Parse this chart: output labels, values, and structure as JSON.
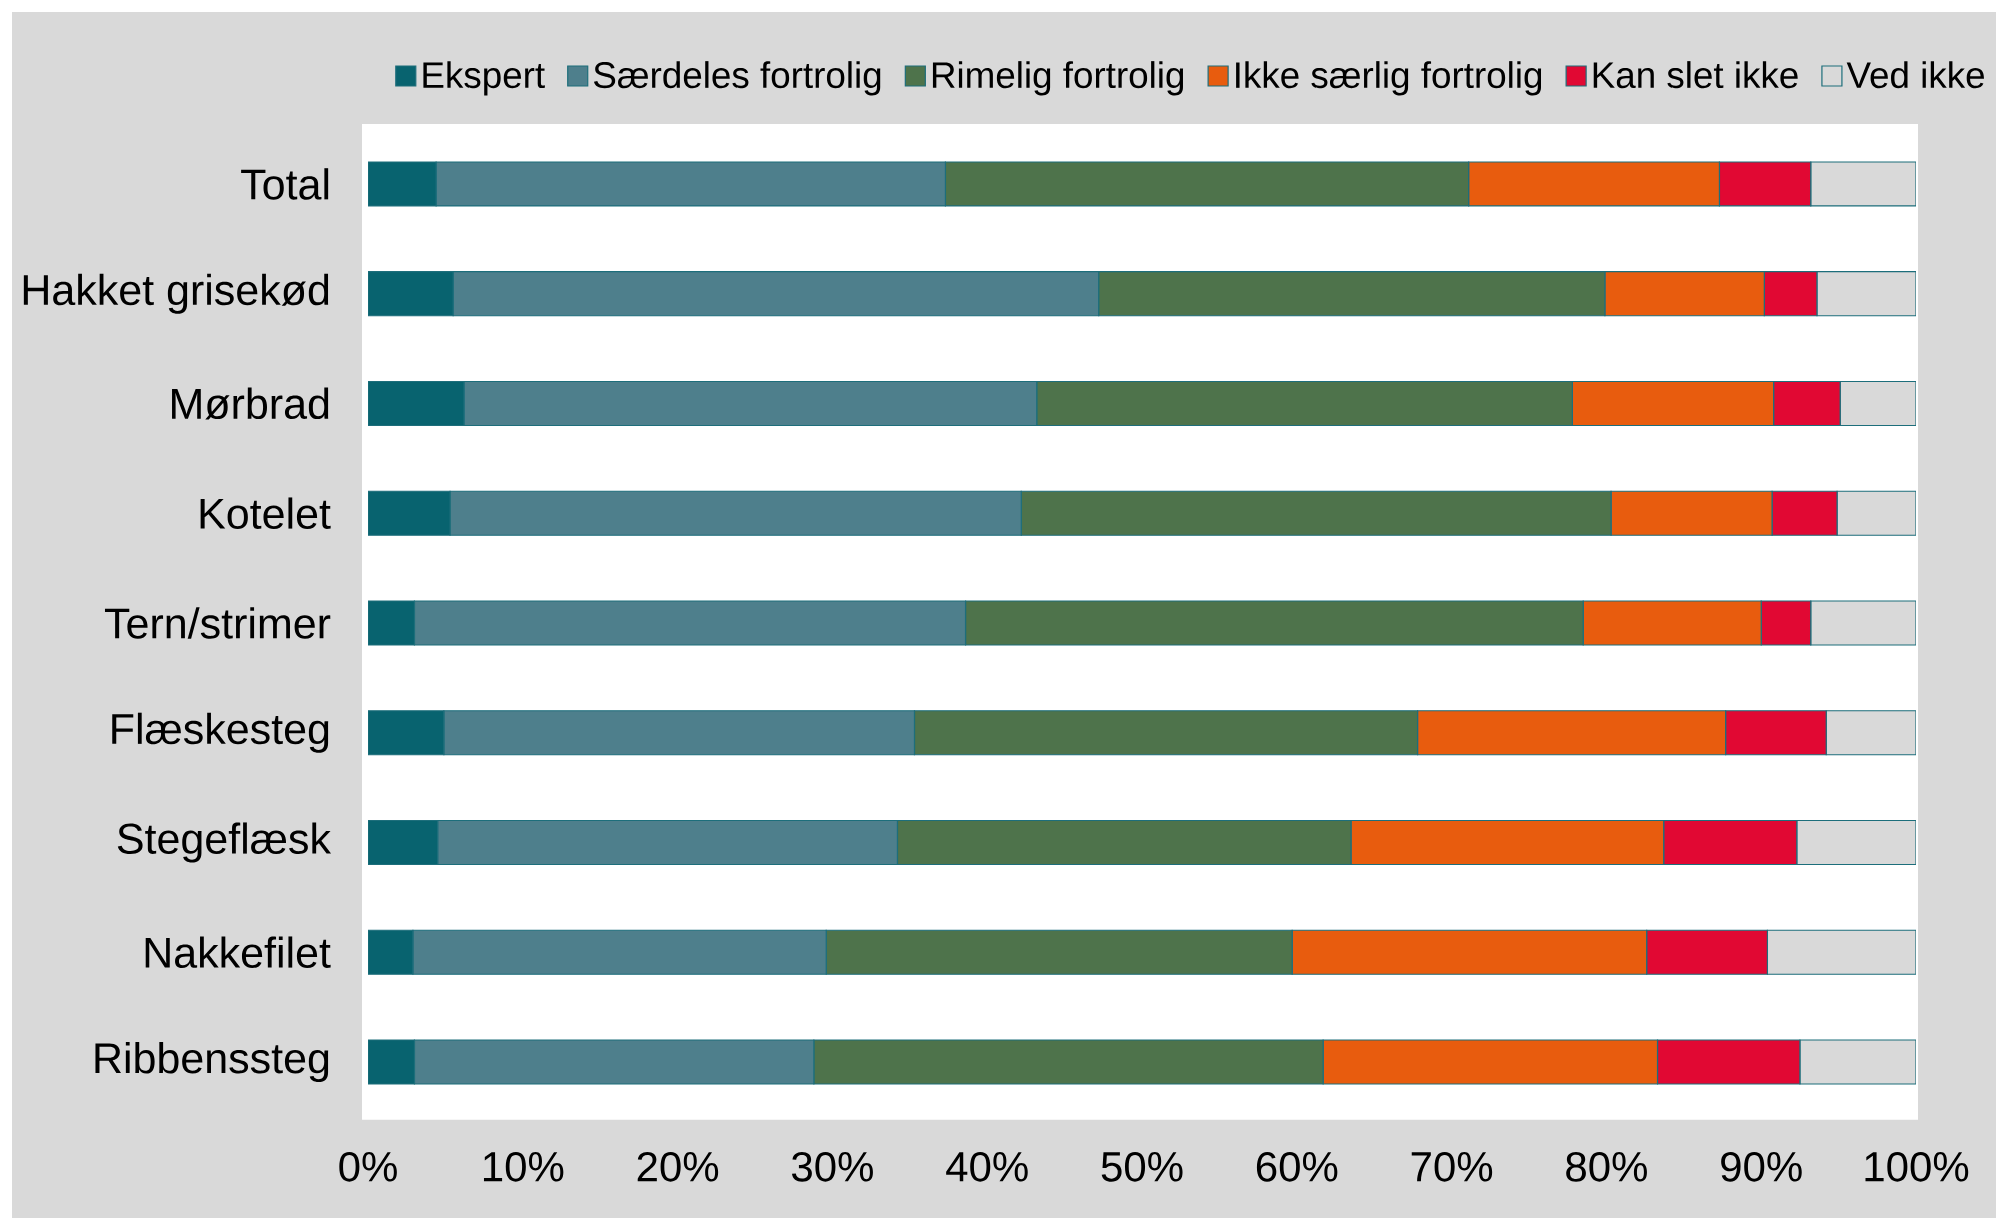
{
  "chart_data": {
    "type": "bar",
    "orientation": "horizontal",
    "stacked": true,
    "categories": [
      "Total",
      "Hakket grisekød",
      "Mørbrad",
      "Kotelet",
      "Tern/strimer",
      "Flæskesteg",
      "Stegeflæsk",
      "Nakkefilet",
      "Ribbenssteg"
    ],
    "series": [
      {
        "name": "Ekspert",
        "color": "#08636f",
        "values": [
          4.4,
          5.5,
          6.2,
          5.3,
          3.0,
          4.9,
          4.5,
          2.9,
          3.0
        ]
      },
      {
        "name": "Særdeles fortrolig",
        "color": "#4e7f8c",
        "values": [
          32.9,
          41.7,
          37.0,
          36.9,
          35.6,
          30.4,
          29.7,
          26.7,
          25.8
        ]
      },
      {
        "name": "Rimelig fortrolig",
        "color": "#4e734b",
        "values": [
          33.8,
          32.7,
          34.6,
          38.1,
          39.9,
          32.5,
          29.3,
          30.1,
          32.9
        ]
      },
      {
        "name": "Ikke særlig fortrolig",
        "color": "#e85c0e",
        "values": [
          16.2,
          10.3,
          13.0,
          10.4,
          11.5,
          19.9,
          20.2,
          22.9,
          21.6
        ]
      },
      {
        "name": "Kan slet ikke",
        "color": "#e10833",
        "values": [
          5.9,
          3.4,
          4.3,
          4.2,
          3.2,
          6.5,
          8.6,
          7.8,
          9.2
        ]
      },
      {
        "name": "Ved ikke",
        "color": "#d9d9d9",
        "values": [
          6.8,
          6.4,
          4.9,
          5.1,
          6.8,
          5.8,
          7.7,
          9.6,
          7.5
        ]
      }
    ],
    "xlim": [
      0,
      100
    ],
    "xticks": [
      {
        "value": 0,
        "label": "0%"
      },
      {
        "value": 10,
        "label": "10%"
      },
      {
        "value": 20,
        "label": "20%"
      },
      {
        "value": 30,
        "label": "30%"
      },
      {
        "value": 40,
        "label": "40%"
      },
      {
        "value": 50,
        "label": "50%"
      },
      {
        "value": 60,
        "label": "60%"
      },
      {
        "value": 70,
        "label": "70%"
      },
      {
        "value": 80,
        "label": "80%"
      },
      {
        "value": 90,
        "label": "90%"
      },
      {
        "value": 100,
        "label": "100%"
      }
    ],
    "legend": "top"
  }
}
